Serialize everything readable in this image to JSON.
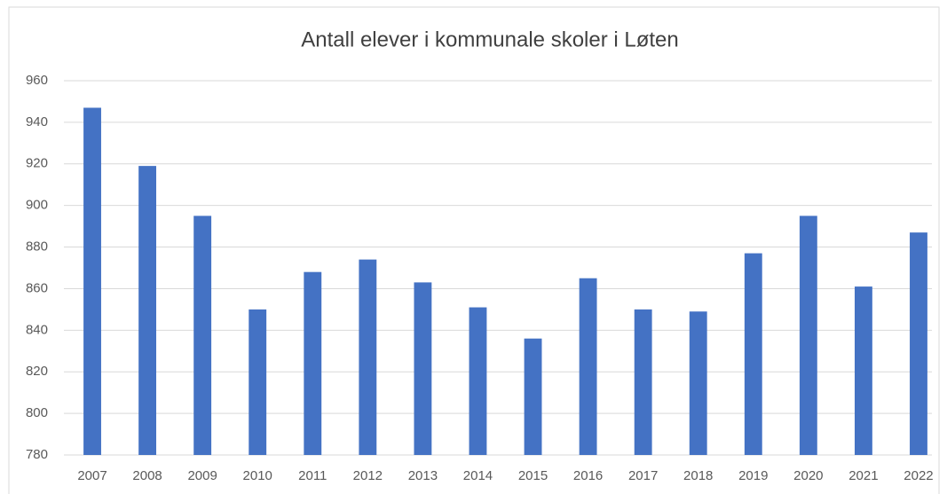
{
  "chart_data": {
    "type": "bar",
    "title": "Antall elever i kommunale skoler i Løten",
    "categories": [
      "2007",
      "2008",
      "2009",
      "2010",
      "2011",
      "2012",
      "2013",
      "2014",
      "2015",
      "2016",
      "2017",
      "2018",
      "2019",
      "2020",
      "2021",
      "2022"
    ],
    "values": [
      947,
      919,
      895,
      850,
      868,
      874,
      863,
      851,
      836,
      865,
      850,
      849,
      877,
      895,
      861,
      887
    ],
    "color": "#4472c4",
    "ylim": [
      780,
      960
    ],
    "yticks": [
      780,
      800,
      820,
      840,
      860,
      880,
      900,
      920,
      940,
      960
    ],
    "grid": true
  }
}
